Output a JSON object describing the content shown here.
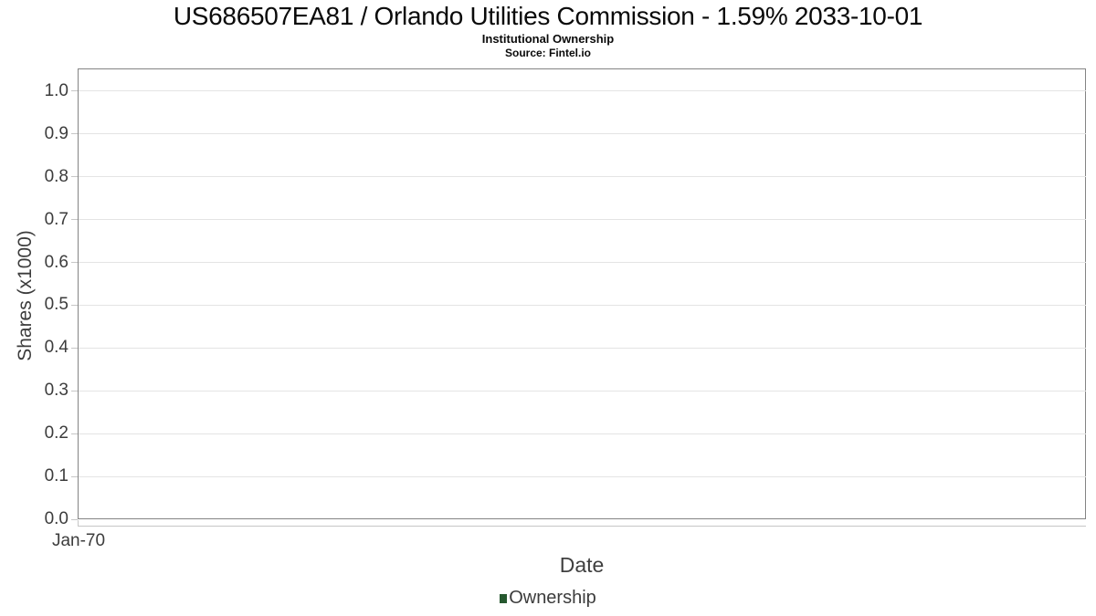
{
  "header": {
    "title": "US686507EA81 / Orlando Utilities Commission - 1.59% 2033-10-01",
    "subtitle": "Institutional Ownership",
    "source": "Source: Fintel.io"
  },
  "chart_data": {
    "type": "line",
    "title": "US686507EA81 / Orlando Utilities Commission - 1.59% 2033-10-01",
    "subtitle": "Institutional Ownership",
    "source": "Source: Fintel.io",
    "xlabel": "Date",
    "ylabel": "Shares (x1000)",
    "x": [],
    "series": [
      {
        "name": "Ownership",
        "values": [],
        "color": "#26582f"
      }
    ],
    "xticks": [
      "Jan-70"
    ],
    "yticks": [
      "1.0",
      "0.9",
      "0.8",
      "0.7",
      "0.6",
      "0.5",
      "0.4",
      "0.3",
      "0.2",
      "0.1",
      "0.0"
    ],
    "ylim": [
      0,
      1.053
    ],
    "grid": true,
    "legend_position": "bottom",
    "colors": {
      "plot_border": "#848484",
      "gridline": "#e4e4e4",
      "tick": "#c6c6c6",
      "axis_text": "#3c3c3c",
      "title_text": "#0a0a0a",
      "legend_swatch": "#26582f"
    }
  }
}
